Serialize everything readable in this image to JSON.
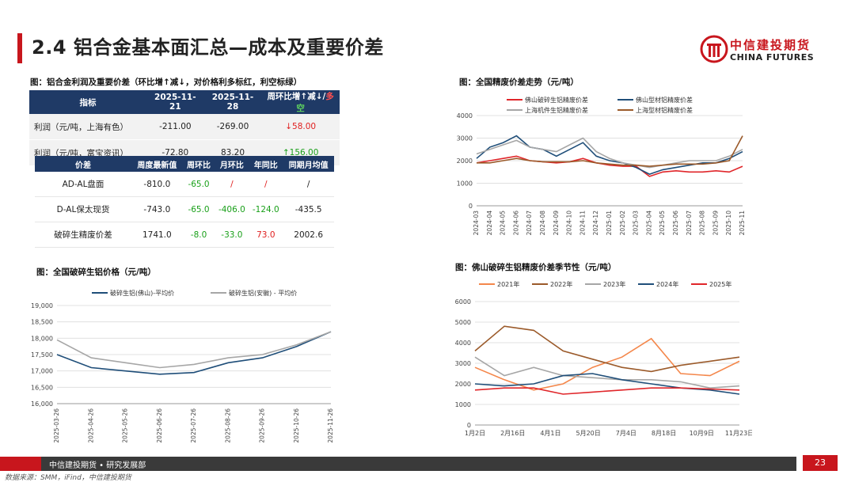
{
  "header": {
    "title": "2.4 铝合金基本面汇总—成本及重要价差",
    "logo_cn": "中信建投期货",
    "logo_en": "CHINA FUTURES"
  },
  "table1": {
    "caption": "图：铝合金利润及重要价差（环比增↑减↓，对价格利多标红，利空标绿）",
    "headers": [
      "指标",
      "2025-11-21",
      "2025-11-28"
    ],
    "header_last_a": "周环比增↑减↓/",
    "header_last_b": "多",
    "header_last_c": "空",
    "rows": [
      {
        "name": "利润（元/吨，上海有色）",
        "a": "-211.00",
        "b": "-269.00",
        "c": "↓58.00",
        "cls": "down"
      },
      {
        "name": "利润（元/吨，富宝资讯）",
        "a": "-72.80",
        "b": "83.20",
        "c": "↑156.00",
        "cls": "up"
      }
    ]
  },
  "table2": {
    "headers": [
      "价差",
      "周度最新值",
      "周环比",
      "月环比",
      "年同比",
      "同期月均值"
    ],
    "rows": [
      {
        "name": "AD-AL盘面",
        "v": "-810.0",
        "w": "-65.0",
        "m": "/",
        "y": "/",
        "avg": "/",
        "wc": "pos",
        "mc": "neg",
        "yc": "neg",
        "ac": ""
      },
      {
        "name": "D-AL保太现货",
        "v": "-743.0",
        "w": "-65.0",
        "m": "-406.0",
        "y": "-124.0",
        "avg": "-435.5",
        "wc": "pos",
        "mc": "pos",
        "yc": "pos",
        "ac": ""
      },
      {
        "name": "破碎生精废价差",
        "v": "1741.0",
        "w": "-8.0",
        "m": "-33.0",
        "y": "73.0",
        "avg": "2002.6",
        "wc": "pos",
        "mc": "pos",
        "yc": "neg",
        "ac": ""
      }
    ]
  },
  "chart_data": [
    {
      "type": "line",
      "id": "c1",
      "title": "图：全国精废价差走势（元/吨）",
      "ylim": [
        0,
        4000
      ],
      "yticks": [
        "0",
        "1000",
        "2000",
        "3000",
        "4000"
      ],
      "xticks": [
        "2024-03",
        "2024-04",
        "2024-05",
        "2024-06",
        "2024-07",
        "2024-08",
        "2024-09",
        "2024-10",
        "2024-11",
        "2024-12",
        "2025-01",
        "2025-02",
        "2025-03",
        "2025-04",
        "2025-05",
        "2025-06",
        "2025-07",
        "2025-08",
        "2025-09",
        "2025-10",
        "2025-11"
      ],
      "series": [
        {
          "name": "佛山破碎生铝精废价差",
          "color": "#e0262a",
          "values": [
            1900,
            2000,
            2100,
            2200,
            2000,
            1950,
            1900,
            1950,
            2100,
            1900,
            1800,
            1750,
            1750,
            1300,
            1500,
            1550,
            1500,
            1500,
            1550,
            1500,
            1750
          ]
        },
        {
          "name": "佛山型材铝精废价差",
          "color": "#1f4e79",
          "values": [
            2100,
            2600,
            2800,
            3100,
            2600,
            2500,
            2200,
            2500,
            2800,
            2200,
            2000,
            1900,
            1700,
            1400,
            1600,
            1700,
            1800,
            1900,
            1900,
            2100,
            2400
          ]
        },
        {
          "name": "上海机件生铝精废价差",
          "color": "#a6a6a6",
          "values": [
            2300,
            2500,
            2700,
            2900,
            2600,
            2500,
            2400,
            2700,
            3000,
            2400,
            2100,
            1900,
            1800,
            1700,
            1800,
            1900,
            2000,
            2000,
            2000,
            2200,
            2500
          ]
        },
        {
          "name": "上海型材铝精废价差",
          "color": "#9b5a2a",
          "values": [
            1900,
            1900,
            2000,
            2100,
            2000,
            1950,
            1950,
            1950,
            2000,
            1900,
            1850,
            1800,
            1800,
            1750,
            1800,
            1850,
            1850,
            1850,
            1900,
            2000,
            3100
          ]
        }
      ]
    },
    {
      "type": "line",
      "id": "c2",
      "title": "图：全国破碎生铝价格（元/吨）",
      "ylim": [
        16000,
        19000
      ],
      "yticks": [
        "16,000",
        "16,500",
        "17,000",
        "17,500",
        "18,000",
        "18,500",
        "19,000"
      ],
      "xticks": [
        "2025-03-26",
        "2025-04-26",
        "2025-05-26",
        "2025-06-26",
        "2025-07-26",
        "2025-08-26",
        "2025-09-26",
        "2025-10-26",
        "2025-11-26"
      ],
      "series": [
        {
          "name": "破碎生铝(佛山)-平均价",
          "color": "#1f4e79",
          "values": [
            17500,
            17100,
            17000,
            16900,
            16950,
            17250,
            17400,
            17750,
            18200
          ]
        },
        {
          "name": "破碎生铝(安徽) - 平均价",
          "color": "#a6a6a6",
          "values": [
            17950,
            17400,
            17250,
            17100,
            17200,
            17400,
            17500,
            17800,
            18200
          ]
        }
      ]
    },
    {
      "type": "line",
      "id": "c3",
      "title": "图：佛山破碎生铝精废价差季节性（元/吨）",
      "ylim": [
        0,
        6000
      ],
      "yticks": [
        "0",
        "1000",
        "2000",
        "3000",
        "4000",
        "5000",
        "6000"
      ],
      "xticks": [
        "1月2日",
        "2月16日",
        "4月1日",
        "5月20日",
        "7月4日",
        "8月18日",
        "10月9日",
        "11月23日"
      ],
      "series": [
        {
          "name": "2021年",
          "color": "#f4874b",
          "values": [
            2800,
            2200,
            1700,
            2000,
            2800,
            3300,
            4200,
            2500,
            2400,
            3100
          ]
        },
        {
          "name": "2022年",
          "color": "#9b5a2a",
          "values": [
            3600,
            4800,
            4600,
            3600,
            3200,
            2800,
            2600,
            2900,
            3100,
            3300
          ]
        },
        {
          "name": "2023年",
          "color": "#a6a6a6",
          "values": [
            3300,
            2400,
            2800,
            2400,
            2300,
            2200,
            2200,
            2100,
            1800,
            1900
          ]
        },
        {
          "name": "2024年",
          "color": "#1f4e79",
          "values": [
            2000,
            1900,
            2000,
            2400,
            2500,
            2200,
            2000,
            1800,
            1700,
            1500
          ]
        },
        {
          "name": "2025年",
          "color": "#e0262a",
          "values": [
            1700,
            1800,
            1800,
            1500,
            1600,
            1700,
            1800,
            1800,
            1750,
            1700
          ]
        }
      ]
    }
  ],
  "footer": {
    "brand": "中信建投期货 • 研究发展部",
    "page": "23",
    "source": "数据来源：SMM，iFind，中信建投期货"
  }
}
